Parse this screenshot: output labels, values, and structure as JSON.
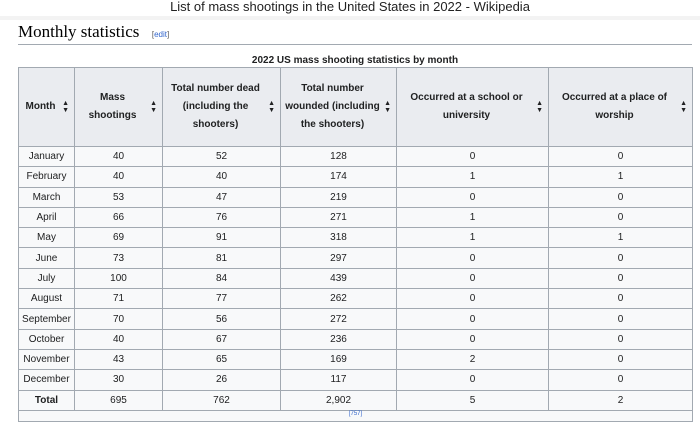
{
  "window_title": "List of mass shootings in the United States in 2022 - Wikipedia",
  "section": {
    "title": "Monthly statistics",
    "edit_open": "[",
    "edit": "edit",
    "edit_close": "]"
  },
  "table": {
    "caption": "2022 US mass shooting statistics by month",
    "headers": [
      "Month",
      "Mass shootings",
      "Total number dead (including the shooters)",
      "Total number wounded (including the shooters)",
      "Occurred at a school or university",
      "Occurred at a place of worship"
    ],
    "rows": [
      [
        "January",
        "40",
        "52",
        "128",
        "0",
        "0"
      ],
      [
        "February",
        "40",
        "40",
        "174",
        "1",
        "1"
      ],
      [
        "March",
        "53",
        "47",
        "219",
        "0",
        "0"
      ],
      [
        "April",
        "66",
        "76",
        "271",
        "1",
        "0"
      ],
      [
        "May",
        "69",
        "91",
        "318",
        "1",
        "1"
      ],
      [
        "June",
        "73",
        "81",
        "297",
        "0",
        "0"
      ],
      [
        "July",
        "100",
        "84",
        "439",
        "0",
        "0"
      ],
      [
        "August",
        "71",
        "77",
        "262",
        "0",
        "0"
      ],
      [
        "September",
        "70",
        "56",
        "272",
        "0",
        "0"
      ],
      [
        "October",
        "40",
        "67",
        "236",
        "0",
        "0"
      ],
      [
        "November",
        "43",
        "65",
        "169",
        "2",
        "0"
      ],
      [
        "December",
        "30",
        "26",
        "117",
        "0",
        "0"
      ]
    ],
    "total": [
      "Total",
      "695",
      "762",
      "2,902",
      "5",
      "2"
    ],
    "footnote": "[757]"
  }
}
